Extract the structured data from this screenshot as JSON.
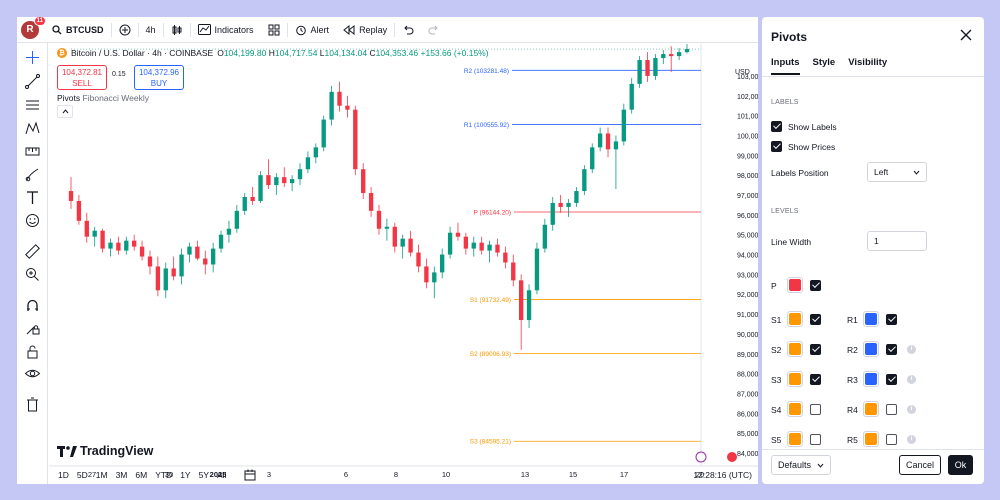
{
  "toolbar": {
    "avatar_letter": "R",
    "notification_count": "11",
    "symbol": "BTCUSD",
    "interval": "4h",
    "indicators": "Indicators",
    "alert": "Alert",
    "replay": "Replay"
  },
  "legend": {
    "title": "Bitcoin / U.S. Dollar · 4h · COINBASE",
    "o_label": "O",
    "o_value": "104,199.80",
    "h_label": "H",
    "h_value": "104,717.54",
    "l_label": "L",
    "l_value": "104,134.04",
    "c_label": "C",
    "c_value": "104,353.46",
    "change": "+153.66 (+0.15%)",
    "sell_price": "104,372.81",
    "sell_label": "SELL",
    "spread": "0.15",
    "buy_price": "104,372.96",
    "buy_label": "BUY",
    "indicator_name": "Pivots",
    "indicator_params": "Fibonacci Weekly"
  },
  "chart_data": {
    "type": "candlestick",
    "currency": "USD",
    "y_ticks": [
      "103,000.00",
      "102,000.00",
      "101,000.00",
      "100,000.00",
      "99,000.00",
      "98,000.00",
      "97,000.00",
      "96,000.00",
      "95,000.00",
      "94,000.00",
      "93,000.00",
      "92,000.00",
      "91,000.00",
      "90,000.00",
      "89,000.00",
      "88,000.00",
      "87,000.00",
      "86,000.00",
      "85,000.00",
      "84,000.00"
    ],
    "x_ticks": [
      "27",
      "30",
      "2025",
      "3",
      "6",
      "8",
      "10",
      "13",
      "15",
      "17",
      "20"
    ],
    "pivot_levels": [
      {
        "label": "R2 (103281.48)",
        "value": 103281.48,
        "color": "#2962ff"
      },
      {
        "label": "R1 (100555.92)",
        "value": 100555.92,
        "color": "#2962ff"
      },
      {
        "label": "P (96144.20)",
        "value": 96144.2,
        "color": "#f23645"
      },
      {
        "label": "S1 (91732.49)",
        "value": 91732.49,
        "color": "#ff9800"
      },
      {
        "label": "S2 (89006.93)",
        "value": 89006.93,
        "color": "#ff9800"
      },
      {
        "label": "S3 (84595.21)",
        "value": 84595.21,
        "color": "#ff9800"
      }
    ],
    "ohlc_approx": [
      [
        97200,
        97900,
        96300,
        96700
      ],
      [
        96700,
        97000,
        95500,
        95700
      ],
      [
        95700,
        96100,
        94600,
        94900
      ],
      [
        94900,
        95400,
        94400,
        95200
      ],
      [
        95200,
        95300,
        94100,
        94300
      ],
      [
        94300,
        94800,
        93900,
        94600
      ],
      [
        94600,
        94900,
        94000,
        94200
      ],
      [
        94200,
        94900,
        94000,
        94700
      ],
      [
        94700,
        95000,
        94200,
        94400
      ],
      [
        94400,
        94700,
        93700,
        93900
      ],
      [
        93900,
        94200,
        93000,
        93400
      ],
      [
        93400,
        93900,
        91900,
        92200
      ],
      [
        92200,
        93600,
        91800,
        93300
      ],
      [
        93300,
        93900,
        92700,
        92900
      ],
      [
        92900,
        94300,
        92500,
        94000
      ],
      [
        94000,
        94600,
        93600,
        94400
      ],
      [
        94400,
        94700,
        93700,
        93800
      ],
      [
        93800,
        94200,
        93000,
        93500
      ],
      [
        93500,
        94600,
        93100,
        94300
      ],
      [
        94300,
        95200,
        94100,
        95000
      ],
      [
        95000,
        95700,
        94600,
        95300
      ],
      [
        95300,
        96500,
        95100,
        96200
      ],
      [
        96200,
        97100,
        96000,
        96900
      ],
      [
        96900,
        97400,
        96500,
        96700
      ],
      [
        96700,
        98200,
        96600,
        98000
      ],
      [
        98000,
        98800,
        97300,
        97500
      ],
      [
        97500,
        98100,
        97000,
        97900
      ],
      [
        97900,
        98400,
        97400,
        97600
      ],
      [
        97600,
        98000,
        97200,
        97800
      ],
      [
        97800,
        98600,
        97500,
        98300
      ],
      [
        98300,
        99200,
        98100,
        98900
      ],
      [
        98900,
        99600,
        98600,
        99400
      ],
      [
        99400,
        101000,
        99200,
        100800
      ],
      [
        100800,
        102500,
        100500,
        102200
      ],
      [
        102200,
        102700,
        101200,
        101500
      ],
      [
        101500,
        102000,
        100900,
        101300
      ],
      [
        101300,
        101500,
        98000,
        98300
      ],
      [
        98300,
        98600,
        96800,
        97100
      ],
      [
        97100,
        97400,
        95900,
        96200
      ],
      [
        96200,
        96500,
        95000,
        95300
      ],
      [
        95300,
        95800,
        94700,
        95400
      ],
      [
        95400,
        95600,
        94100,
        94400
      ],
      [
        94400,
        95000,
        93800,
        94800
      ],
      [
        94800,
        95200,
        93900,
        94100
      ],
      [
        94100,
        94500,
        93100,
        93400
      ],
      [
        93400,
        93800,
        92300,
        92600
      ],
      [
        92600,
        93400,
        91800,
        93100
      ],
      [
        93100,
        94300,
        92800,
        94000
      ],
      [
        94000,
        95400,
        93800,
        95100
      ],
      [
        95100,
        95600,
        94700,
        94900
      ],
      [
        94900,
        95100,
        94000,
        94300
      ],
      [
        94300,
        94900,
        93900,
        94600
      ],
      [
        94600,
        94900,
        94000,
        94200
      ],
      [
        94200,
        94700,
        93600,
        94500
      ],
      [
        94500,
        94800,
        93900,
        94100
      ],
      [
        94100,
        94400,
        93300,
        93600
      ],
      [
        93600,
        94000,
        92400,
        92700
      ],
      [
        92700,
        93000,
        89200,
        90700
      ],
      [
        90700,
        92500,
        90300,
        92200
      ],
      [
        92200,
        94600,
        92000,
        94300
      ],
      [
        94300,
        95800,
        94100,
        95500
      ],
      [
        95500,
        96900,
        95200,
        96600
      ],
      [
        96600,
        97000,
        96100,
        96400
      ],
      [
        96400,
        96800,
        95900,
        96600
      ],
      [
        96600,
        97400,
        96400,
        97200
      ],
      [
        97200,
        98500,
        97000,
        98300
      ],
      [
        98300,
        99600,
        98100,
        99400
      ],
      [
        99400,
        100400,
        99200,
        100100
      ],
      [
        100100,
        100400,
        98900,
        99300
      ],
      [
        99300,
        100000,
        97300,
        99700
      ],
      [
        99700,
        101600,
        99500,
        101300
      ],
      [
        101300,
        102900,
        101100,
        102600
      ],
      [
        102600,
        104000,
        102400,
        103800
      ],
      [
        103800,
        104200,
        102700,
        103000
      ],
      [
        103000,
        104100,
        102800,
        103900
      ],
      [
        103900,
        104300,
        103600,
        104100
      ],
      [
        104100,
        104500,
        103200,
        104000
      ],
      [
        104000,
        104400,
        103800,
        104200
      ],
      [
        104200,
        104720,
        104130,
        104353
      ]
    ]
  },
  "time_ranges": [
    "1D",
    "5D",
    "1M",
    "3M",
    "6M",
    "YTD",
    "1Y",
    "5Y",
    "All"
  ],
  "timestamp": "12:28:16 (UTC)",
  "logo_text": "TradingView",
  "panel": {
    "title": "Pivots",
    "tabs": [
      "Inputs",
      "Style",
      "Visibility"
    ],
    "labels_section": "LABELS",
    "show_labels": "Show Labels",
    "show_prices": "Show Prices",
    "labels_position_label": "Labels Position",
    "labels_position_value": "Left",
    "levels_section": "LEVELS",
    "line_width_label": "Line Width",
    "line_width_value": "1",
    "levels": [
      {
        "name": "P",
        "color": "#f23645",
        "checked": true
      },
      {
        "name": "S1",
        "color": "#ff9800",
        "checked": true
      },
      {
        "name": "R1",
        "color": "#2962ff",
        "checked": true
      },
      {
        "name": "S2",
        "color": "#ff9800",
        "checked": true
      },
      {
        "name": "R2",
        "color": "#2962ff",
        "checked": true
      },
      {
        "name": "S3",
        "color": "#ff9800",
        "checked": true
      },
      {
        "name": "R3",
        "color": "#2962ff",
        "checked": true
      },
      {
        "name": "S4",
        "color": "#ff9800",
        "checked": false
      },
      {
        "name": "R4",
        "color": "#ff9800",
        "checked": false
      },
      {
        "name": "S5",
        "color": "#ff9800",
        "checked": false
      },
      {
        "name": "R5",
        "color": "#ff9800",
        "checked": false
      }
    ],
    "defaults_label": "Defaults",
    "cancel_label": "Cancel",
    "ok_label": "Ok"
  }
}
